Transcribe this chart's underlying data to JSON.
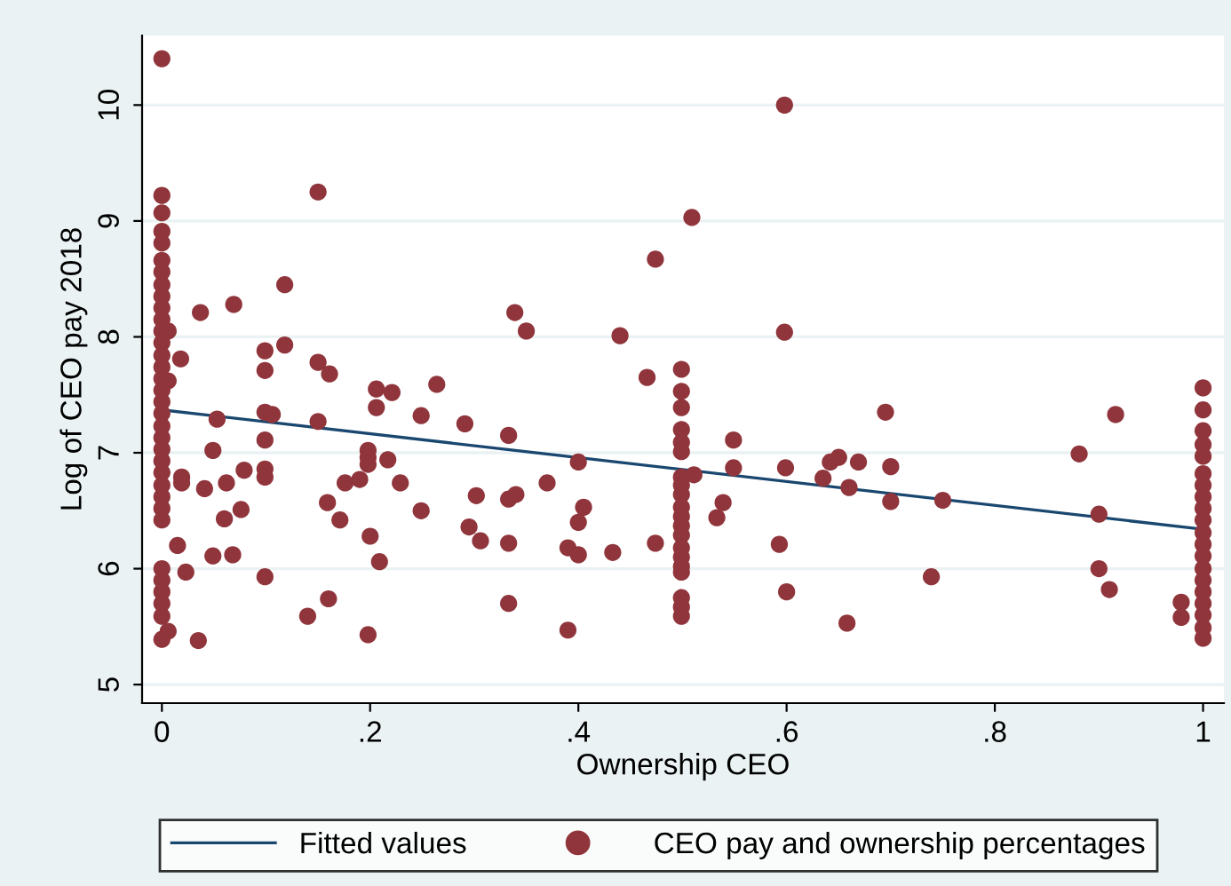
{
  "chart_data": {
    "type": "scatter",
    "xlabel": "Ownership CEO",
    "ylabel": "Log of CEO pay 2018",
    "xlim": [
      -0.019,
      1.02
    ],
    "ylim": [
      4.84,
      10.6
    ],
    "xticks": [
      0,
      {
        "value": 0.2,
        "label": ".2"
      },
      {
        "value": 0.4,
        "label": ".4"
      },
      {
        "value": 0.6,
        "label": ".6"
      },
      {
        "value": 0.8,
        "label": ".8"
      },
      1
    ],
    "yticks": [
      5,
      6,
      7,
      8,
      9,
      10
    ],
    "grid": "y",
    "legend": "bottom",
    "series": [
      {
        "name": "Fitted values",
        "type": "line",
        "marker": "none",
        "color": "#1a476f",
        "x": [
          0,
          1
        ],
        "values": [
          7.37,
          6.34
        ]
      },
      {
        "name": "CEO pay and ownership percentages",
        "marker": "circle",
        "color": "#90353b",
        "x": [
          0,
          0,
          0,
          0,
          0,
          0,
          0,
          0,
          0,
          0,
          0,
          0,
          0,
          0,
          0,
          0,
          0,
          0,
          0,
          0,
          0,
          0,
          0,
          0,
          0,
          0,
          0,
          0,
          0,
          0,
          0,
          0,
          0,
          0,
          0.006,
          0.006,
          0.006,
          0.015,
          0.018,
          0.037,
          0.023,
          0.035,
          0.019,
          0.019,
          0.049,
          0.053,
          0.041,
          0.062,
          0.079,
          0.076,
          0.06,
          0.049,
          0.068,
          0.069,
          0.099,
          0.099,
          0.099,
          0.106,
          0.099,
          0.099,
          0.099,
          0.099,
          0.118,
          0.118,
          0.15,
          0.15,
          0.161,
          0.15,
          0.159,
          0.171,
          0.14,
          0.16,
          0.176,
          0.19,
          0.198,
          0.198,
          0.198,
          0.217,
          0.2,
          0.209,
          0.198,
          0.206,
          0.221,
          0.206,
          0.229,
          0.249,
          0.264,
          0.249,
          0.291,
          0.302,
          0.295,
          0.306,
          0.339,
          0.35,
          0.333,
          0.333,
          0.34,
          0.333,
          0.333,
          0.37,
          0.4,
          0.405,
          0.4,
          0.39,
          0.4,
          0.39,
          0.433,
          0.44,
          0.474,
          0.466,
          0.474,
          0.509,
          0.499,
          0.499,
          0.499,
          0.499,
          0.499,
          0.499,
          0.499,
          0.499,
          0.499,
          0.499,
          0.499,
          0.499,
          0.499,
          0.499,
          0.499,
          0.499,
          0.499,
          0.499,
          0.499,
          0.499,
          0.511,
          0.549,
          0.549,
          0.539,
          0.533,
          0.598,
          0.598,
          0.599,
          0.593,
          0.6,
          0.635,
          0.642,
          0.65,
          0.669,
          0.66,
          0.658,
          0.695,
          0.7,
          0.7,
          0.75,
          0.739,
          0.881,
          0.916,
          0.9,
          0.9,
          0.91,
          0.979,
          0.979,
          1,
          1,
          1,
          1,
          1,
          1,
          1,
          1,
          1,
          1,
          1,
          1,
          1,
          1,
          1,
          1,
          1,
          1,
          1,
          1
        ],
        "values": [
          10.4,
          9.22,
          9.07,
          8.91,
          8.81,
          8.66,
          8.56,
          8.45,
          8.35,
          8.25,
          8.15,
          8.05,
          7.95,
          7.84,
          7.74,
          7.64,
          7.54,
          7.44,
          7.34,
          7.23,
          7.13,
          7.03,
          6.93,
          6.83,
          6.72,
          6.62,
          6.52,
          6.42,
          6.0,
          5.9,
          5.8,
          5.7,
          5.59,
          5.39,
          8.05,
          7.62,
          5.46,
          6.2,
          7.81,
          8.21,
          5.97,
          5.38,
          6.79,
          6.74,
          7.02,
          7.29,
          6.69,
          6.74,
          6.85,
          6.51,
          6.43,
          6.11,
          6.12,
          8.28,
          7.88,
          7.71,
          7.35,
          7.33,
          7.11,
          6.86,
          6.79,
          5.93,
          8.45,
          7.93,
          9.25,
          7.78,
          7.68,
          7.27,
          6.57,
          6.42,
          5.59,
          5.74,
          6.74,
          6.77,
          7.02,
          6.96,
          6.9,
          6.94,
          6.28,
          6.06,
          5.43,
          7.55,
          7.52,
          7.39,
          6.74,
          7.32,
          7.59,
          6.5,
          7.25,
          6.63,
          6.36,
          6.24,
          8.21,
          8.05,
          7.15,
          6.6,
          6.64,
          6.22,
          5.7,
          6.74,
          6.92,
          6.53,
          6.4,
          6.18,
          6.12,
          5.47,
          6.14,
          8.01,
          8.67,
          7.65,
          6.22,
          9.03,
          7.72,
          7.53,
          7.39,
          7.2,
          7.09,
          7.01,
          6.79,
          6.72,
          6.64,
          6.53,
          6.45,
          6.37,
          6.29,
          6.18,
          6.1,
          6.02,
          5.97,
          5.75,
          5.67,
          5.59,
          6.81,
          7.11,
          6.87,
          6.57,
          6.44,
          10.0,
          8.04,
          6.87,
          6.21,
          5.8,
          6.78,
          6.92,
          6.96,
          6.92,
          6.7,
          5.53,
          7.35,
          6.88,
          6.58,
          6.59,
          5.93,
          6.99,
          7.33,
          6.47,
          6.0,
          5.82,
          5.71,
          5.58,
          7.56,
          7.37,
          7.19,
          7.07,
          6.97,
          6.82,
          6.72,
          6.62,
          6.52,
          6.42,
          6.31,
          6.21,
          6.11,
          6.0,
          5.9,
          5.8,
          5.7,
          5.6,
          5.49,
          5.4
        ]
      }
    ]
  }
}
